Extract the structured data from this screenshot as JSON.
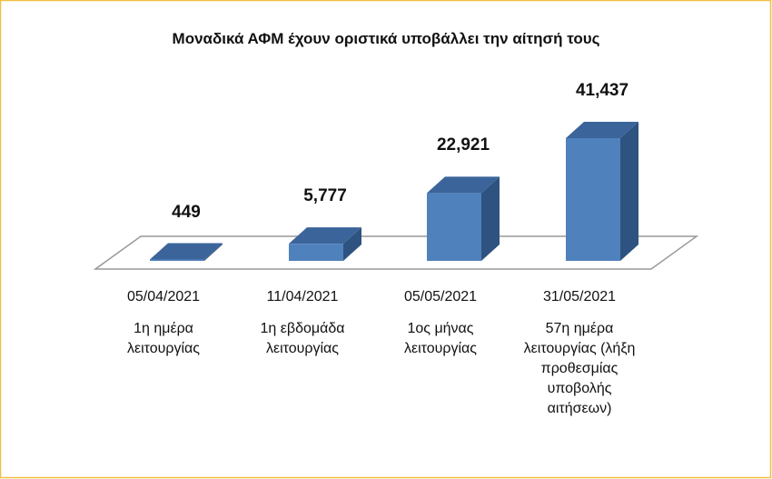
{
  "chart_data": {
    "type": "bar3d",
    "title": "Μοναδικά ΑΦΜ έχουν οριστικά υποβάλλει την αίτησή τους",
    "categories": [
      "05/04/2021",
      "11/04/2021",
      "05/05/2021",
      "31/05/2021"
    ],
    "descriptions": [
      "1η ημέρα λειτουργίας",
      "1η εβδομάδα λειτουργίας",
      "1ος μήνας λειτουργίας",
      "57η ημέρα λειτουργίας (λήξη προθεσμίας υποβολής αιτήσεων)"
    ],
    "values": [
      449,
      5777,
      22921,
      41437
    ],
    "value_labels": [
      "449",
      "5,777",
      "22,921",
      "41,437"
    ],
    "color": "#4f81bd"
  }
}
